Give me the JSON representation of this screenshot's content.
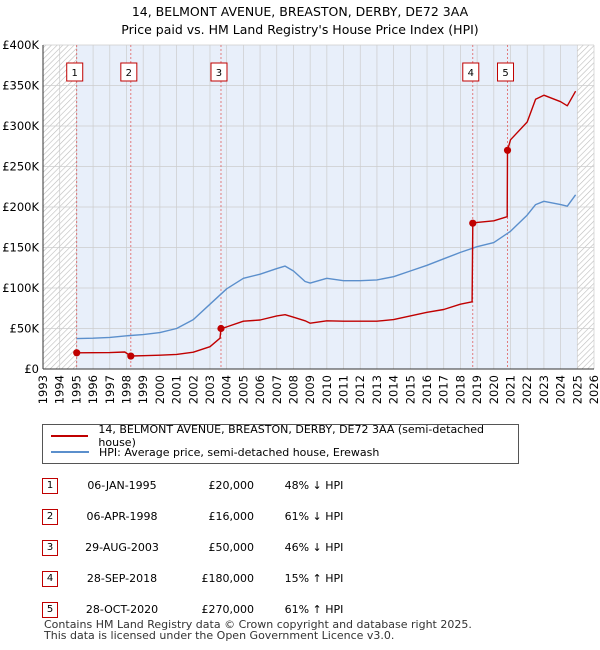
{
  "title_line1": "14, BELMONT AVENUE, BREASTON, DERBY, DE72 3AA",
  "title_line2": "Price paid vs. HM Land Registry's House Price Index (HPI)",
  "colors": {
    "property": "#c00000",
    "hpi": "#5b8fcc",
    "shade": "#e8effa",
    "grid": "#cccccc"
  },
  "chart_data": {
    "type": "line",
    "xlim": [
      1993,
      2026
    ],
    "ylim": [
      0,
      400000
    ],
    "x_ticks": [
      1993,
      1994,
      1995,
      1996,
      1997,
      1998,
      1999,
      2000,
      2001,
      2002,
      2003,
      2004,
      2005,
      2006,
      2007,
      2008,
      2009,
      2010,
      2011,
      2012,
      2013,
      2014,
      2015,
      2016,
      2017,
      2018,
      2019,
      2020,
      2021,
      2022,
      2023,
      2024,
      2025,
      2026
    ],
    "y_ticks": [
      {
        "value": 0,
        "label": "£0"
      },
      {
        "value": 50000,
        "label": "£50K"
      },
      {
        "value": 100000,
        "label": "£100K"
      },
      {
        "value": 150000,
        "label": "£150K"
      },
      {
        "value": 200000,
        "label": "£200K"
      },
      {
        "value": 250000,
        "label": "£250K"
      },
      {
        "value": 300000,
        "label": "£300K"
      },
      {
        "value": 350000,
        "label": "£350K"
      },
      {
        "value": 400000,
        "label": "£400K"
      }
    ],
    "shaded_ranges": [
      [
        1995.0,
        2025.0
      ]
    ],
    "series": [
      {
        "name": "14, BELMONT AVENUE, BREASTON, DERBY, DE72 3AA (semi-detached house)",
        "color": "#c00000",
        "points": [
          [
            1995.02,
            20000
          ],
          [
            1996,
            20100
          ],
          [
            1997,
            20300
          ],
          [
            1997.9,
            21000
          ],
          [
            1998.26,
            16000
          ],
          [
            1999,
            16400
          ],
          [
            2000,
            17000
          ],
          [
            2001,
            18000
          ],
          [
            2002,
            20800
          ],
          [
            2003,
            27500
          ],
          [
            2003.6,
            38000
          ],
          [
            2003.66,
            50000
          ],
          [
            2004,
            52000
          ],
          [
            2005,
            59000
          ],
          [
            2006,
            60500
          ],
          [
            2007,
            65500
          ],
          [
            2007.5,
            67000
          ],
          [
            2008,
            64000
          ],
          [
            2008.7,
            59500
          ],
          [
            2009,
            56500
          ],
          [
            2010,
            59500
          ],
          [
            2011,
            59000
          ],
          [
            2012,
            59000
          ],
          [
            2013,
            59000
          ],
          [
            2014,
            61000
          ],
          [
            2015,
            65500
          ],
          [
            2016,
            70000
          ],
          [
            2017,
            73500
          ],
          [
            2018,
            80000
          ],
          [
            2018.7,
            83000
          ],
          [
            2018.74,
            180000
          ],
          [
            2019,
            181000
          ],
          [
            2020,
            183000
          ],
          [
            2020.8,
            188000
          ],
          [
            2020.82,
            270000
          ],
          [
            2021,
            283000
          ],
          [
            2022,
            305000
          ],
          [
            2022.5,
            333000
          ],
          [
            2023,
            338000
          ],
          [
            2024,
            330000
          ],
          [
            2024.4,
            325000
          ],
          [
            2024.9,
            343000
          ]
        ]
      },
      {
        "name": "HPI: Average price, semi-detached house, Erewash",
        "color": "#5b8fcc",
        "points": [
          [
            1995.02,
            37500
          ],
          [
            1996,
            38000
          ],
          [
            1997,
            39000
          ],
          [
            1998,
            41000
          ],
          [
            1999,
            42500
          ],
          [
            2000,
            45000
          ],
          [
            2001,
            50000
          ],
          [
            2002,
            61000
          ],
          [
            2003,
            80000
          ],
          [
            2004,
            99000
          ],
          [
            2005,
            112000
          ],
          [
            2006,
            117000
          ],
          [
            2007,
            124000
          ],
          [
            2007.5,
            127000
          ],
          [
            2008,
            121000
          ],
          [
            2008.7,
            108000
          ],
          [
            2009,
            106000
          ],
          [
            2010,
            112000
          ],
          [
            2011,
            109000
          ],
          [
            2012,
            109000
          ],
          [
            2013,
            110000
          ],
          [
            2014,
            114000
          ],
          [
            2015,
            121000
          ],
          [
            2016,
            128000
          ],
          [
            2017,
            136000
          ],
          [
            2018,
            144000
          ],
          [
            2019,
            151000
          ],
          [
            2020,
            156000
          ],
          [
            2021,
            170000
          ],
          [
            2022,
            190000
          ],
          [
            2022.5,
            203000
          ],
          [
            2023,
            207000
          ],
          [
            2024,
            203000
          ],
          [
            2024.4,
            201000
          ],
          [
            2024.9,
            215000
          ]
        ]
      }
    ],
    "markers": [
      {
        "label": "1",
        "x": 1995.02,
        "y": 20000
      },
      {
        "label": "2",
        "x": 1998.26,
        "y": 16000
      },
      {
        "label": "3",
        "x": 2003.66,
        "y": 50000
      },
      {
        "label": "4",
        "x": 2018.74,
        "y": 180000
      },
      {
        "label": "5",
        "x": 2020.82,
        "y": 270000
      }
    ]
  },
  "legend": [
    {
      "label": "14, BELMONT AVENUE, BREASTON, DERBY, DE72 3AA (semi-detached house)",
      "color": "#c00000"
    },
    {
      "label": "HPI: Average price, semi-detached house, Erewash",
      "color": "#5b8fcc"
    }
  ],
  "sales": [
    {
      "num": "1",
      "date": "06-JAN-1995",
      "price": "£20,000",
      "hpi": "48% ↓ HPI"
    },
    {
      "num": "2",
      "date": "06-APR-1998",
      "price": "£16,000",
      "hpi": "61% ↓ HPI"
    },
    {
      "num": "3",
      "date": "29-AUG-2003",
      "price": "£50,000",
      "hpi": "46% ↓ HPI"
    },
    {
      "num": "4",
      "date": "28-SEP-2018",
      "price": "£180,000",
      "hpi": "15% ↑ HPI"
    },
    {
      "num": "5",
      "date": "28-OCT-2020",
      "price": "£270,000",
      "hpi": "61% ↑ HPI"
    }
  ],
  "footer_line1": "Contains HM Land Registry data © Crown copyright and database right 2025.",
  "footer_line2": "This data is licensed under the Open Government Licence v3.0."
}
